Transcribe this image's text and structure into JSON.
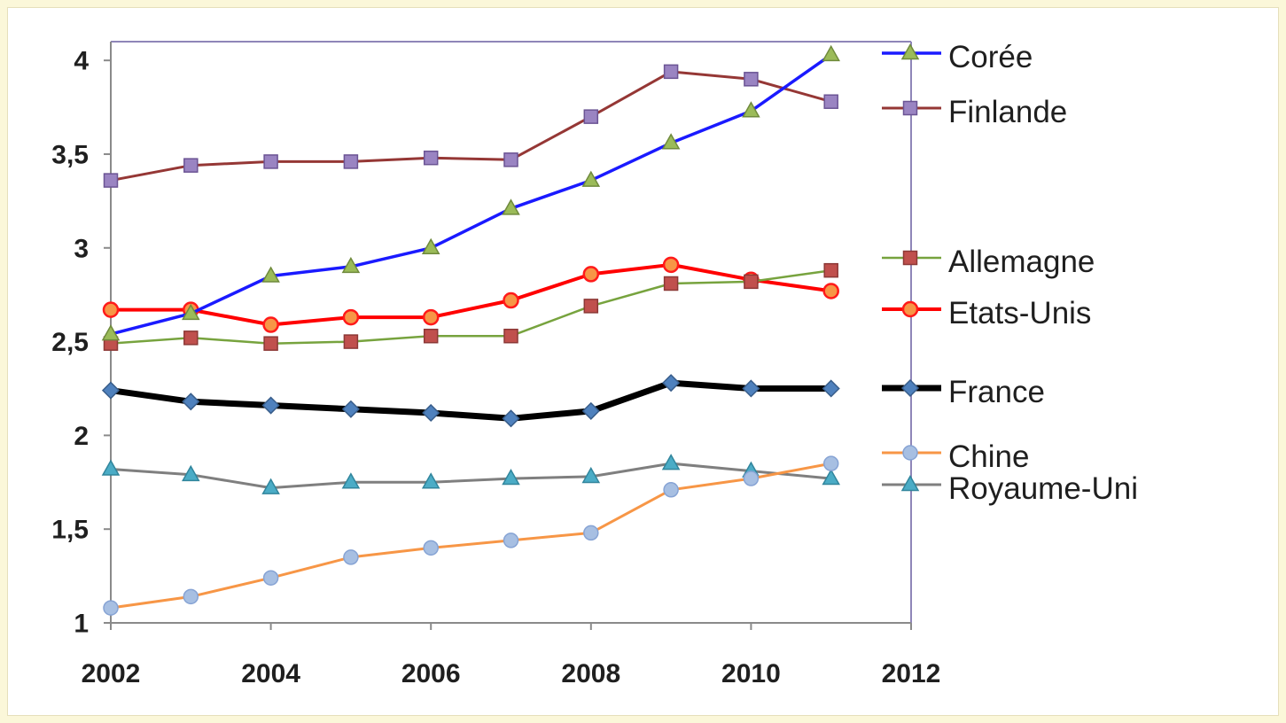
{
  "chart_data": {
    "type": "line",
    "x": [
      2002,
      2003,
      2004,
      2005,
      2006,
      2007,
      2008,
      2009,
      2010,
      2011
    ],
    "xlim": [
      2002,
      2012
    ],
    "ylim": [
      1,
      4.1
    ],
    "x_ticks": [
      2002,
      2004,
      2006,
      2008,
      2010,
      2012
    ],
    "x_tick_labels": [
      "2002",
      "2004",
      "2006",
      "2008",
      "2010",
      "2012"
    ],
    "y_ticks": [
      1,
      1.5,
      2,
      2.5,
      3,
      3.5,
      4
    ],
    "y_tick_labels": [
      "1",
      "1,5",
      "2",
      "2,5",
      "3",
      "3,5",
      "4"
    ],
    "grid": false,
    "legend": "right",
    "series": [
      {
        "name": "Corée",
        "color": "#1a1aff",
        "marker": "triangle",
        "marker_color": "#9bbb59",
        "marker_edge": "#6f8a3c",
        "values": [
          2.54,
          2.65,
          2.85,
          2.9,
          3.0,
          3.21,
          3.36,
          3.56,
          3.73,
          4.03
        ]
      },
      {
        "name": "Finlande",
        "color": "#953735",
        "marker": "square",
        "marker_color": "#9a84c2",
        "marker_edge": "#6b5494",
        "values": [
          3.36,
          3.44,
          3.46,
          3.46,
          3.48,
          3.47,
          3.7,
          3.94,
          3.9,
          3.78
        ]
      },
      {
        "name": "Allemagne",
        "color": "#77a33e",
        "marker": "square",
        "marker_color": "#c0504d",
        "marker_edge": "#8c3836",
        "values": [
          2.49,
          2.52,
          2.49,
          2.5,
          2.53,
          2.53,
          2.69,
          2.81,
          2.82,
          2.88
        ]
      },
      {
        "name": "Etats-Unis",
        "color": "#ff0000",
        "marker": "circle",
        "marker_color": "#f79646",
        "marker_edge": "#ff1a1a",
        "values": [
          2.67,
          2.67,
          2.59,
          2.63,
          2.63,
          2.72,
          2.86,
          2.91,
          2.83,
          2.77
        ]
      },
      {
        "name": "France",
        "color": "#000000",
        "marker": "diamond",
        "marker_color": "#4f81bd",
        "marker_edge": "#385d8a",
        "values": [
          2.24,
          2.18,
          2.16,
          2.14,
          2.12,
          2.09,
          2.13,
          2.28,
          2.25,
          2.25
        ]
      },
      {
        "name": "Chine",
        "color": "#f79646",
        "marker": "circle",
        "marker_color": "#a7bfe2",
        "marker_edge": "#86a3d4",
        "values": [
          1.08,
          1.14,
          1.24,
          1.35,
          1.4,
          1.44,
          1.48,
          1.71,
          1.77,
          1.85
        ]
      },
      {
        "name": "Royaume-Uni",
        "color": "#7f7f7f",
        "marker": "triangle",
        "marker_color": "#4bacc6",
        "marker_edge": "#31859c",
        "values": [
          1.82,
          1.79,
          1.72,
          1.75,
          1.75,
          1.77,
          1.78,
          1.85,
          1.81,
          1.77
        ]
      }
    ]
  }
}
